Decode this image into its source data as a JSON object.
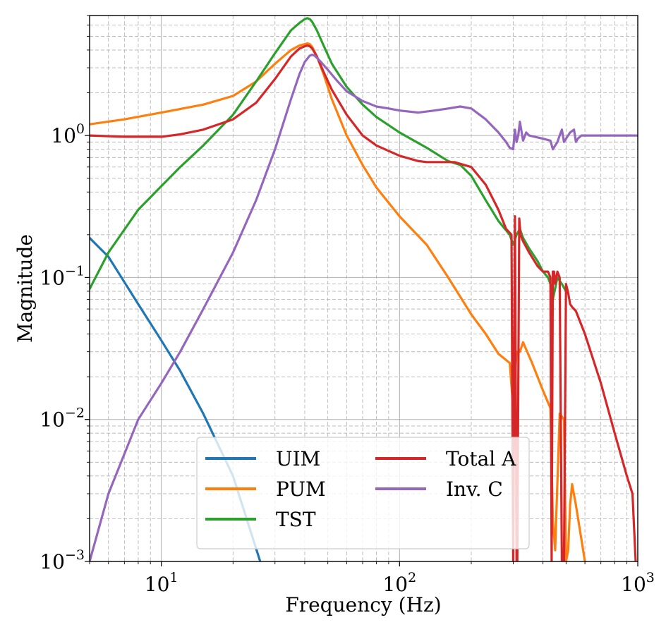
{
  "chart_data": {
    "type": "line",
    "title": "",
    "xlabel": "Frequency (Hz)",
    "ylabel": "Magnitude",
    "xscale": "log",
    "yscale": "log",
    "xlim": [
      5,
      1000
    ],
    "ylim": [
      0.001,
      7
    ],
    "grid": true,
    "legend_position": "lower-center",
    "legend_columns": 2,
    "x_ticks": [
      {
        "value": 10,
        "base": "10",
        "exp": "1"
      },
      {
        "value": 100,
        "base": "10",
        "exp": "2"
      },
      {
        "value": 1000,
        "base": "10",
        "exp": "3"
      }
    ],
    "y_ticks": [
      {
        "value": 0.001,
        "base": "10",
        "exp": "−3"
      },
      {
        "value": 0.01,
        "base": "10",
        "exp": "−2"
      },
      {
        "value": 0.1,
        "base": "10",
        "exp": "−1"
      },
      {
        "value": 1,
        "base": "10",
        "exp": "0"
      }
    ],
    "series": [
      {
        "name": "UIM",
        "color": "#1f77b4",
        "x": [
          5,
          6,
          8,
          10,
          12,
          15,
          20,
          26
        ],
        "y": [
          0.19,
          0.14,
          0.065,
          0.036,
          0.022,
          0.011,
          0.004,
          0.001
        ]
      },
      {
        "name": "PUM",
        "color": "#ff7f0e",
        "x": [
          5,
          7,
          10,
          15,
          20,
          25,
          30,
          35,
          38,
          40,
          41,
          42,
          43,
          45,
          48,
          52,
          60,
          70,
          80,
          100,
          130,
          160,
          200,
          230,
          260,
          290,
          300,
          310,
          320,
          330,
          360,
          400,
          430,
          440,
          450,
          470,
          490,
          500,
          510,
          520,
          530,
          550,
          600
        ],
        "y": [
          1.2,
          1.3,
          1.45,
          1.65,
          1.9,
          2.4,
          3.2,
          4.0,
          4.3,
          4.4,
          4.45,
          4.4,
          4.2,
          3.6,
          2.7,
          1.8,
          1.0,
          0.62,
          0.43,
          0.27,
          0.17,
          0.1,
          0.055,
          0.04,
          0.029,
          0.025,
          0.012,
          0.03,
          0.03,
          0.035,
          0.025,
          0.016,
          0.012,
          0.002,
          0.0012,
          0.011,
          0.01,
          0.001,
          0.0012,
          0.0025,
          0.0035,
          0.0025,
          0.001
        ]
      },
      {
        "name": "TST",
        "color": "#2ca02c",
        "x": [
          5,
          6,
          8,
          10,
          12,
          15,
          20,
          25,
          30,
          35,
          38,
          40,
          41,
          42,
          43,
          45,
          48,
          52,
          60,
          70,
          80,
          100,
          130,
          160,
          180,
          200,
          230,
          260,
          290,
          300,
          310,
          320,
          330,
          350,
          380,
          400,
          420,
          430,
          440,
          460,
          480,
          500
        ],
        "y": [
          0.083,
          0.15,
          0.3,
          0.44,
          0.6,
          0.85,
          1.4,
          2.4,
          3.8,
          5.5,
          6.2,
          6.6,
          6.7,
          6.6,
          6.3,
          5.5,
          4.3,
          3.2,
          2.2,
          1.65,
          1.35,
          1.05,
          0.82,
          0.66,
          0.62,
          0.52,
          0.35,
          0.25,
          0.2,
          0.17,
          0.2,
          0.22,
          0.19,
          0.16,
          0.13,
          0.11,
          0.1,
          0.09,
          0.07,
          0.1,
          0.09,
          0.08
        ]
      },
      {
        "name": "Total A",
        "color": "#d62728",
        "x": [
          5,
          7,
          10,
          12,
          15,
          20,
          25,
          30,
          35,
          38,
          40,
          41,
          42,
          43,
          45,
          48,
          52,
          60,
          70,
          80,
          100,
          120,
          130,
          150,
          170,
          200,
          230,
          260,
          280,
          295,
          300,
          305,
          310,
          312,
          318,
          322,
          330,
          350,
          380,
          400,
          420,
          430,
          435,
          440,
          445,
          450,
          460,
          470,
          480,
          490,
          500,
          510,
          520,
          530,
          540,
          550,
          600,
          700,
          800,
          900,
          950,
          980
        ],
        "y": [
          1.0,
          0.98,
          0.98,
          1.02,
          1.1,
          1.3,
          1.7,
          2.5,
          3.6,
          4.1,
          4.25,
          4.3,
          4.25,
          4.1,
          3.6,
          2.8,
          2.1,
          1.4,
          1.0,
          0.85,
          0.72,
          0.66,
          0.65,
          0.65,
          0.65,
          0.6,
          0.45,
          0.3,
          0.22,
          0.2,
          0.001,
          0.27,
          0.001,
          0.001,
          0.26,
          0.2,
          0.18,
          0.15,
          0.12,
          0.11,
          0.11,
          0.1,
          0.001,
          0.11,
          0.11,
          0.09,
          0.11,
          0.1,
          0.001,
          0.001,
          0.09,
          0.078,
          0.065,
          0.062,
          0.06,
          0.058,
          0.04,
          0.018,
          0.008,
          0.004,
          0.003,
          0.001
        ]
      },
      {
        "name": "Inv. C",
        "color": "#9467bd",
        "x": [
          5,
          6,
          8,
          10,
          12,
          15,
          20,
          25,
          30,
          35,
          38,
          40,
          42,
          43,
          44,
          46,
          50,
          55,
          60,
          70,
          80,
          90,
          100,
          120,
          140,
          160,
          180,
          200,
          230,
          260,
          280,
          290,
          300,
          305,
          310,
          315,
          320,
          330,
          340,
          350,
          400,
          430,
          440,
          450,
          460,
          470,
          480,
          490,
          500,
          520,
          540,
          550,
          560,
          580,
          600,
          700,
          800,
          900,
          1000
        ],
        "y": [
          0.001,
          0.003,
          0.01,
          0.018,
          0.03,
          0.06,
          0.15,
          0.35,
          0.8,
          1.8,
          2.7,
          3.3,
          3.65,
          3.7,
          3.65,
          3.4,
          2.9,
          2.4,
          2.05,
          1.75,
          1.6,
          1.55,
          1.5,
          1.45,
          1.5,
          1.55,
          1.6,
          1.55,
          1.3,
          1.05,
          0.9,
          0.82,
          0.8,
          1.1,
          0.9,
          1.0,
          1.25,
          0.92,
          1.05,
          1.0,
          0.95,
          0.92,
          0.8,
          0.85,
          0.9,
          1.0,
          1.1,
          0.9,
          0.95,
          1.05,
          1.1,
          0.9,
          0.95,
          1.0,
          1.0,
          1.0,
          1.0,
          1.0,
          1.0
        ]
      }
    ],
    "legend_layout": [
      [
        "UIM",
        "Total A"
      ],
      [
        "PUM",
        "Inv. C"
      ],
      [
        "TST"
      ]
    ]
  }
}
